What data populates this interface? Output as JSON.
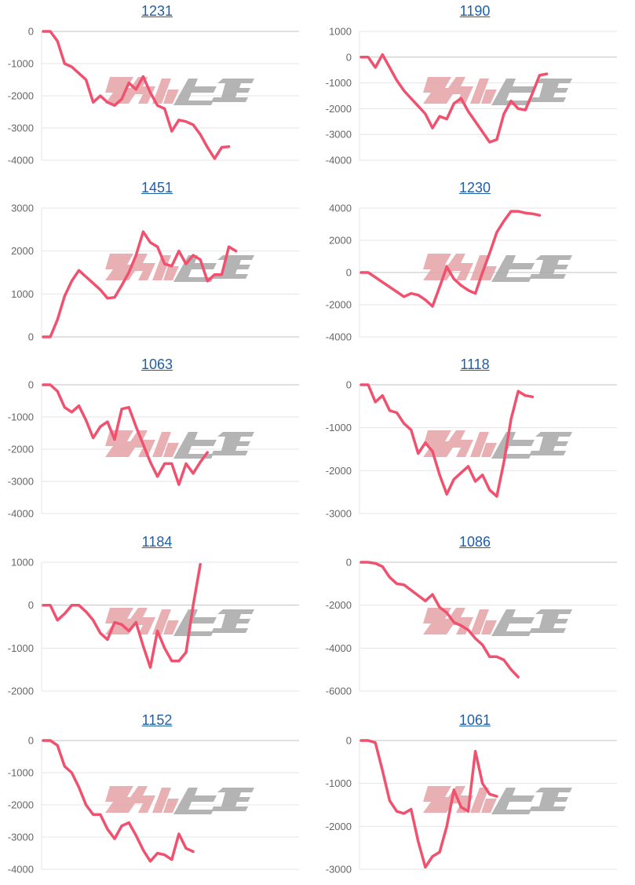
{
  "colors": {
    "line": "#f0516e",
    "title": "#1f5fa8",
    "watermark_pink": "#e6a3a8",
    "watermark_gray": "#a8a8a8"
  },
  "chart_data": [
    {
      "type": "line",
      "title": "1231",
      "ylim": [
        -4000,
        0
      ],
      "yticks": [
        "0",
        "-1000",
        "-2000",
        "-3000",
        "-4000"
      ],
      "values": [
        0,
        0,
        -300,
        -1000,
        -1100,
        -1300,
        -1500,
        -2200,
        -2000,
        -2200,
        -2300,
        -2100,
        -1600,
        -1800,
        -1400,
        -1900,
        -2300,
        -2400,
        -3100,
        -2750,
        -2800,
        -2900,
        -3200,
        -3600,
        -3950,
        -3600,
        -3580
      ]
    },
    {
      "type": "line",
      "title": "1190",
      "ylim": [
        -4000,
        1000
      ],
      "yticks": [
        "1000",
        "0",
        "-1000",
        "-2000",
        "-3000",
        "-4000"
      ],
      "values": [
        0,
        0,
        -400,
        100,
        -400,
        -900,
        -1300,
        -1600,
        -1900,
        -2200,
        -2750,
        -2300,
        -2400,
        -1800,
        -1600,
        -2100,
        -2500,
        -2900,
        -3300,
        -3200,
        -2200,
        -1700,
        -2000,
        -2050,
        -1400,
        -700,
        -650
      ]
    },
    {
      "type": "line",
      "title": "1451",
      "ylim": [
        0,
        3000
      ],
      "yticks": [
        "3000",
        "2000",
        "1000",
        "0"
      ],
      "values": [
        0,
        0,
        400,
        950,
        1300,
        1550,
        1400,
        1250,
        1100,
        900,
        920,
        1200,
        1500,
        1900,
        2450,
        2200,
        2100,
        1700,
        1650,
        2000,
        1700,
        1900,
        1800,
        1300,
        1450,
        1450,
        2100,
        2000
      ]
    },
    {
      "type": "line",
      "title": "1230",
      "ylim": [
        -4000,
        4000
      ],
      "yticks": [
        "4000",
        "2000",
        "0",
        "-2000",
        "-4000"
      ],
      "values": [
        0,
        0,
        -300,
        -600,
        -900,
        -1200,
        -1500,
        -1300,
        -1400,
        -1700,
        -2100,
        -900,
        350,
        -400,
        -800,
        -1100,
        -1300,
        0,
        1200,
        2500,
        3200,
        3800,
        3800,
        3700,
        3650,
        3550
      ]
    },
    {
      "type": "line",
      "title": "1063",
      "ylim": [
        -4000,
        0
      ],
      "yticks": [
        "0",
        "-1000",
        "-2000",
        "-3000",
        "-4000"
      ],
      "values": [
        0,
        0,
        -200,
        -700,
        -850,
        -650,
        -1100,
        -1650,
        -1300,
        -1150,
        -1700,
        -750,
        -700,
        -1300,
        -1850,
        -2400,
        -2850,
        -2450,
        -2450,
        -3100,
        -2450,
        -2750,
        -2400,
        -2100
      ]
    },
    {
      "type": "line",
      "title": "1118",
      "ylim": [
        -3000,
        0
      ],
      "yticks": [
        "0",
        "-1000",
        "-2000",
        "-3000"
      ],
      "values": [
        0,
        0,
        -400,
        -250,
        -600,
        -650,
        -900,
        -1050,
        -1600,
        -1350,
        -1550,
        -2100,
        -2550,
        -2200,
        -2050,
        -1900,
        -2250,
        -2100,
        -2450,
        -2600,
        -1800,
        -800,
        -150,
        -250,
        -280
      ]
    },
    {
      "type": "line",
      "title": "1184",
      "ylim": [
        -2000,
        1000
      ],
      "yticks": [
        "1000",
        "0",
        "-1000",
        "-2000"
      ],
      "values": [
        0,
        0,
        -350,
        -200,
        0,
        0,
        -150,
        -350,
        -650,
        -800,
        -400,
        -450,
        -600,
        -400,
        -950,
        -1450,
        -600,
        -1000,
        -1300,
        -1300,
        -1100,
        0,
        950
      ]
    },
    {
      "type": "line",
      "title": "1086",
      "ylim": [
        -6000,
        0
      ],
      "yticks": [
        "0",
        "-2000",
        "-4000",
        "-6000"
      ],
      "values": [
        0,
        0,
        -50,
        -200,
        -700,
        -1000,
        -1050,
        -1300,
        -1550,
        -1800,
        -1500,
        -2100,
        -2350,
        -2800,
        -2950,
        -3150,
        -3550,
        -3850,
        -4400,
        -4400,
        -4550,
        -5000,
        -5350
      ]
    },
    {
      "type": "line",
      "title": "1152",
      "ylim": [
        -4000,
        0
      ],
      "yticks": [
        "0",
        "-1000",
        "-2000",
        "-3000",
        "-4000"
      ],
      "values": [
        0,
        0,
        -150,
        -800,
        -1000,
        -1450,
        -2000,
        -2300,
        -2300,
        -2750,
        -3050,
        -2650,
        -2550,
        -2950,
        -3400,
        -3750,
        -3500,
        -3550,
        -3700,
        -2900,
        -3350,
        -3450
      ]
    },
    {
      "type": "line",
      "title": "1061",
      "ylim": [
        -3000,
        0
      ],
      "yticks": [
        "0",
        "-1000",
        "-2000",
        "-3000"
      ],
      "values": [
        0,
        0,
        -50,
        -700,
        -1400,
        -1650,
        -1700,
        -1600,
        -2350,
        -2950,
        -2700,
        -2600,
        -2000,
        -1150,
        -1550,
        -1650,
        -250,
        -1000,
        -1250,
        -1300
      ]
    }
  ]
}
